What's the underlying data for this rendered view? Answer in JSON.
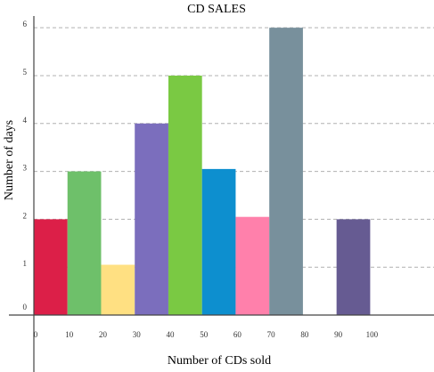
{
  "chart_data": {
    "type": "bar",
    "title": "CD SALES",
    "xlabel": "Number of CDs sold",
    "ylabel": "Number of days",
    "xlim": [
      0,
      115
    ],
    "ylim": [
      0,
      6.3
    ],
    "x_ticks": [
      0,
      10,
      20,
      30,
      40,
      50,
      60,
      70,
      80,
      90,
      100
    ],
    "y_ticks": [
      0,
      1,
      2,
      3,
      4,
      5,
      6
    ],
    "grid": true,
    "bars": [
      {
        "from": 0,
        "to": 10,
        "value": 2,
        "color": "#dc1f48"
      },
      {
        "from": 10,
        "to": 20,
        "value": 3,
        "color": "#6ec06a"
      },
      {
        "from": 20,
        "to": 30,
        "value": 1.05,
        "color": "#ffe082"
      },
      {
        "from": 30,
        "to": 40,
        "value": 4,
        "color": "#7b6ebd"
      },
      {
        "from": 40,
        "to": 50,
        "value": 5,
        "color": "#7ac943"
      },
      {
        "from": 50,
        "to": 60,
        "value": 3.05,
        "color": "#0d8fcf"
      },
      {
        "from": 60,
        "to": 70,
        "value": 2.05,
        "color": "#ff80ab"
      },
      {
        "from": 70,
        "to": 80,
        "value": 6,
        "color": "#78909c"
      },
      {
        "from": 90,
        "to": 100,
        "value": 2,
        "color": "#665b92"
      }
    ]
  }
}
